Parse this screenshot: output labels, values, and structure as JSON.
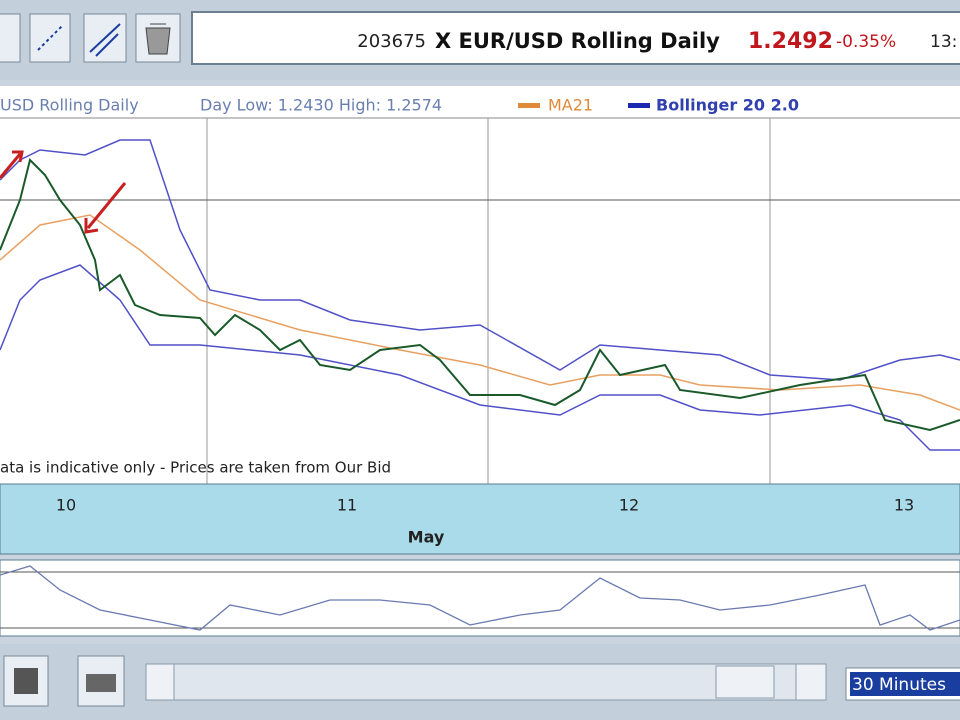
{
  "toolbar": {
    "quote": {
      "id": "203675",
      "instrument": "X EUR/USD  Rolling Daily",
      "price": "1.2492",
      "change": "-0.35%",
      "time": "13:"
    }
  },
  "legend": {
    "instrument": "USD  Rolling Daily",
    "range": "Day Low: 1.2430 High: 1.2574",
    "ma": "MA21",
    "bollinger": "Bollinger 20 2.0"
  },
  "note": "ata is indicative only - Prices are taken from Our Bid",
  "x_axis": {
    "days": [
      "10",
      "11",
      "12",
      "13"
    ],
    "month": "May"
  },
  "footer": {
    "interval": "30 Minutes"
  }
}
